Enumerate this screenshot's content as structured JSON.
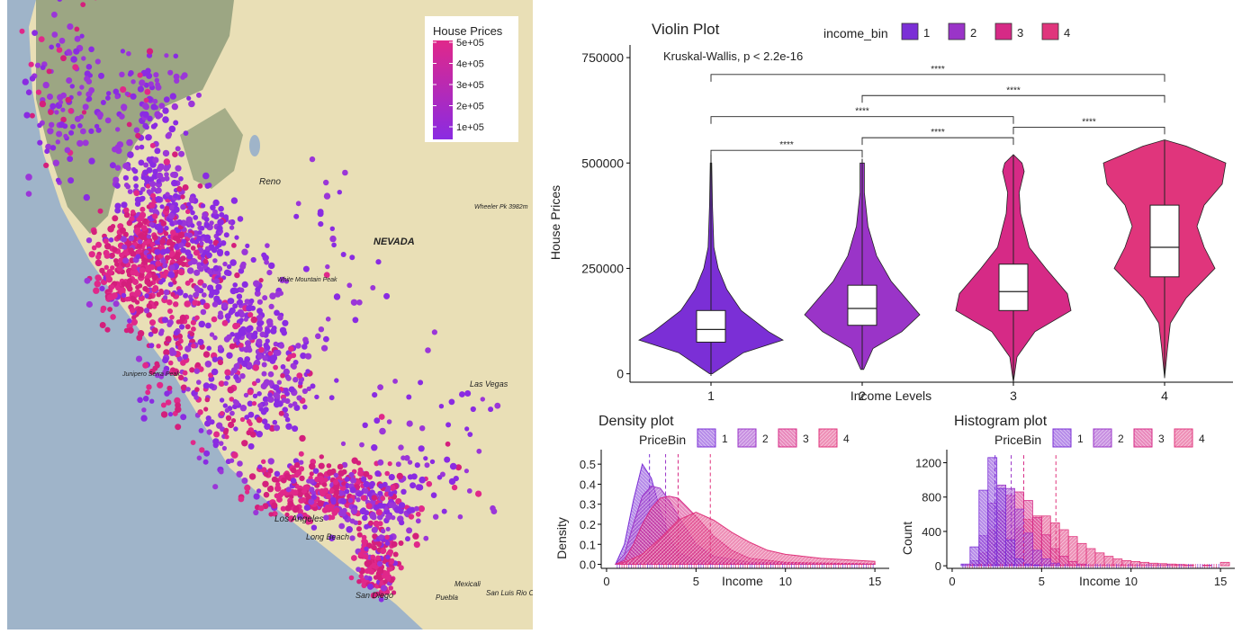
{
  "map": {
    "legend_title": "House Prices",
    "legend_ticks": [
      "5e+05",
      "4e+05",
      "3e+05",
      "2e+05",
      "1e+05"
    ],
    "legend_tick_values": [
      500000,
      400000,
      300000,
      200000,
      100000
    ],
    "gradient_colors": [
      "#e0288a",
      "#8a2be2"
    ],
    "labels": [
      "Reno",
      "NEVADA",
      "Las Vegas",
      "Los Angeles",
      "Long Beach",
      "San Diego",
      "Mexicali",
      "San Luis Rio Colorado",
      "Puebla",
      "Wheeler Pk 3982m",
      "White Mountain Peak",
      "Junipero Serra Peak"
    ]
  },
  "colors": {
    "bin1": "#7b2fd6",
    "bin2": "#9a34c8",
    "bin3": "#d62a86",
    "bin4": "#e0357c",
    "map_water": "#9fb4c9",
    "map_land": "#e9dfb6",
    "map_forest": "#93a07d"
  },
  "chart_data": [
    {
      "type": "violin",
      "title": "Violin Plot",
      "xlabel": "Income Levels",
      "ylabel": "House Prices",
      "legend_title": "income_bin",
      "legend_position": "top",
      "categories": [
        "1",
        "2",
        "3",
        "4"
      ],
      "yticks": [
        0,
        250000,
        500000,
        750000
      ],
      "ytick_labels": [
        "0",
        "250000",
        "500000",
        "750000"
      ],
      "ylim": [
        -20000,
        780000
      ],
      "annotation": "Kruskal-Wallis, p < 2.2e-16",
      "series": [
        {
          "name": "1",
          "min": -5000,
          "q1": 75000,
          "median": 105000,
          "q3": 150000,
          "max": 520000,
          "density": [
            [
              0,
              0.02
            ],
            [
              50000,
              0.45
            ],
            [
              80000,
              1.0
            ],
            [
              100000,
              0.8
            ],
            [
              150000,
              0.42
            ],
            [
              200000,
              0.22
            ],
            [
              250000,
              0.1
            ],
            [
              300000,
              0.04
            ],
            [
              400000,
              0.02
            ],
            [
              500000,
              0.01
            ]
          ]
        },
        {
          "name": "2",
          "min": 10000,
          "q1": 115000,
          "median": 155000,
          "q3": 210000,
          "max": 510000,
          "density": [
            [
              10000,
              0.02
            ],
            [
              60000,
              0.15
            ],
            [
              100000,
              0.55
            ],
            [
              140000,
              0.8
            ],
            [
              170000,
              0.65
            ],
            [
              220000,
              0.4
            ],
            [
              280000,
              0.2
            ],
            [
              350000,
              0.08
            ],
            [
              430000,
              0.03
            ],
            [
              500000,
              0.03
            ]
          ]
        },
        {
          "name": "3",
          "min": -20000,
          "q1": 150000,
          "median": 195000,
          "q3": 260000,
          "max": 520000,
          "density": [
            [
              -20000,
              0.0
            ],
            [
              40000,
              0.05
            ],
            [
              100000,
              0.3
            ],
            [
              150000,
              0.8
            ],
            [
              190000,
              0.75
            ],
            [
              250000,
              0.45
            ],
            [
              300000,
              0.22
            ],
            [
              380000,
              0.1
            ],
            [
              430000,
              0.08
            ],
            [
              480000,
              0.15
            ],
            [
              500000,
              0.12
            ],
            [
              520000,
              0.0
            ]
          ]
        },
        {
          "name": "4",
          "min": -10000,
          "q1": 230000,
          "median": 300000,
          "q3": 400000,
          "max": 555000,
          "density": [
            [
              -10000,
              0.0
            ],
            [
              60000,
              0.04
            ],
            [
              120000,
              0.08
            ],
            [
              180000,
              0.3
            ],
            [
              250000,
              0.7
            ],
            [
              300000,
              0.55
            ],
            [
              350000,
              0.45
            ],
            [
              400000,
              0.55
            ],
            [
              450000,
              0.8
            ],
            [
              500000,
              0.85
            ],
            [
              540000,
              0.3
            ],
            [
              555000,
              0.0
            ]
          ]
        }
      ],
      "comparisons": [
        {
          "groups": [
            "1",
            "4"
          ],
          "label": "****",
          "y": 710000
        },
        {
          "groups": [
            "2",
            "4"
          ],
          "label": "****",
          "y": 660000
        },
        {
          "groups": [
            "1",
            "3"
          ],
          "label": "****",
          "y": 610000
        },
        {
          "groups": [
            "2",
            "3"
          ],
          "label": "****",
          "y": 560000
        },
        {
          "groups": [
            "3",
            "4"
          ],
          "label": "****",
          "y": 585000
        },
        {
          "groups": [
            "1",
            "2"
          ],
          "label": "****",
          "y": 530000
        }
      ]
    },
    {
      "type": "area",
      "title": "Density plot",
      "xlabel": "Income",
      "ylabel": "Density",
      "legend_title": "PriceBin",
      "categories": [
        "1",
        "2",
        "3",
        "4"
      ],
      "xlim": [
        -0.3,
        15.8
      ],
      "ylim": [
        -0.02,
        0.55
      ],
      "xticks": [
        0,
        5,
        10,
        15
      ],
      "yticks": [
        0.0,
        0.1,
        0.2,
        0.3,
        0.4,
        0.5
      ],
      "ytick_labels": [
        "0.0",
        "0.1",
        "0.2",
        "0.3",
        "0.4",
        "0.5"
      ],
      "series": [
        {
          "name": "1",
          "mean": 2.4,
          "points": [
            [
              0.5,
              0
            ],
            [
              1.0,
              0.1
            ],
            [
              1.5,
              0.32
            ],
            [
              2.0,
              0.5
            ],
            [
              2.5,
              0.43
            ],
            [
              3.0,
              0.27
            ],
            [
              3.5,
              0.14
            ],
            [
              4.0,
              0.06
            ],
            [
              5.0,
              0.02
            ],
            [
              7.0,
              0.005
            ],
            [
              15.0,
              0.002
            ]
          ]
        },
        {
          "name": "2",
          "mean": 3.3,
          "points": [
            [
              0.5,
              0
            ],
            [
              1.0,
              0.05
            ],
            [
              1.5,
              0.2
            ],
            [
              2.0,
              0.34
            ],
            [
              2.5,
              0.39
            ],
            [
              3.0,
              0.38
            ],
            [
              3.5,
              0.32
            ],
            [
              4.0,
              0.24
            ],
            [
              5.0,
              0.1
            ],
            [
              6.0,
              0.04
            ],
            [
              8.0,
              0.01
            ],
            [
              15.0,
              0.002
            ]
          ]
        },
        {
          "name": "3",
          "mean": 4.0,
          "points": [
            [
              0.5,
              0
            ],
            [
              1.0,
              0.02
            ],
            [
              1.5,
              0.1
            ],
            [
              2.0,
              0.2
            ],
            [
              2.5,
              0.28
            ],
            [
              3.0,
              0.33
            ],
            [
              3.5,
              0.34
            ],
            [
              4.0,
              0.33
            ],
            [
              5.0,
              0.24
            ],
            [
              6.0,
              0.14
            ],
            [
              7.0,
              0.07
            ],
            [
              8.0,
              0.03
            ],
            [
              10.0,
              0.01
            ],
            [
              15.0,
              0.002
            ]
          ]
        },
        {
          "name": "4",
          "mean": 5.8,
          "points": [
            [
              0.5,
              0
            ],
            [
              1.0,
              0.01
            ],
            [
              2.0,
              0.05
            ],
            [
              3.0,
              0.13
            ],
            [
              4.0,
              0.22
            ],
            [
              5.0,
              0.26
            ],
            [
              6.0,
              0.22
            ],
            [
              7.0,
              0.16
            ],
            [
              8.0,
              0.11
            ],
            [
              9.0,
              0.07
            ],
            [
              10.0,
              0.05
            ],
            [
              11.0,
              0.04
            ],
            [
              12.0,
              0.03
            ],
            [
              13.0,
              0.025
            ],
            [
              14.0,
              0.02
            ],
            [
              15.0,
              0.015
            ]
          ]
        }
      ]
    },
    {
      "type": "histogram",
      "title": "Histogram plot",
      "xlabel": "Income",
      "ylabel": "Count",
      "legend_title": "PriceBin",
      "categories": [
        "1",
        "2",
        "3",
        "4"
      ],
      "xlim": [
        -0.3,
        15.8
      ],
      "ylim": [
        -30,
        1300
      ],
      "xticks": [
        0,
        5,
        10,
        15
      ],
      "yticks": [
        0,
        400,
        800,
        1200
      ],
      "ytick_labels": [
        "0",
        "400",
        "800",
        "1200"
      ],
      "bin_width": 0.5,
      "series": [
        {
          "name": "1",
          "mean": 2.4,
          "bins": [
            [
              0.5,
              20
            ],
            [
              1.0,
              220
            ],
            [
              1.5,
              880
            ],
            [
              2.0,
              1260
            ],
            [
              2.5,
              900
            ],
            [
              3.0,
              300
            ],
            [
              3.5,
              80
            ],
            [
              4.0,
              20
            ],
            [
              4.5,
              8
            ]
          ]
        },
        {
          "name": "2",
          "mean": 3.3,
          "bins": [
            [
              1.0,
              60
            ],
            [
              1.5,
              350
            ],
            [
              2.0,
              730
            ],
            [
              2.5,
              940
            ],
            [
              3.0,
              900
            ],
            [
              3.5,
              660
            ],
            [
              4.0,
              380
            ],
            [
              4.5,
              180
            ],
            [
              5.0,
              80
            ],
            [
              5.5,
              30
            ]
          ]
        },
        {
          "name": "3",
          "mean": 4.0,
          "bins": [
            [
              1.0,
              20
            ],
            [
              1.5,
              150
            ],
            [
              2.0,
              420
            ],
            [
              2.5,
              640
            ],
            [
              3.0,
              820
            ],
            [
              3.5,
              860
            ],
            [
              4.0,
              760
            ],
            [
              4.5,
              560
            ],
            [
              5.0,
              360
            ],
            [
              5.5,
              200
            ],
            [
              6.0,
              110
            ],
            [
              6.5,
              50
            ],
            [
              7.0,
              20
            ]
          ]
        },
        {
          "name": "4",
          "mean": 5.8,
          "bins": [
            [
              1.5,
              20
            ],
            [
              2.0,
              80
            ],
            [
              2.5,
              180
            ],
            [
              3.0,
              320
            ],
            [
              3.5,
              440
            ],
            [
              4.0,
              540
            ],
            [
              4.5,
              580
            ],
            [
              5.0,
              580
            ],
            [
              5.5,
              500
            ],
            [
              6.0,
              420
            ],
            [
              6.5,
              340
            ],
            [
              7.0,
              260
            ],
            [
              7.5,
              200
            ],
            [
              8.0,
              150
            ],
            [
              8.5,
              110
            ],
            [
              9.0,
              80
            ],
            [
              9.5,
              60
            ],
            [
              10.0,
              50
            ],
            [
              10.5,
              40
            ],
            [
              11.0,
              30
            ],
            [
              11.5,
              25
            ],
            [
              12.0,
              20
            ],
            [
              12.5,
              15
            ],
            [
              13.0,
              10
            ],
            [
              14.0,
              8
            ],
            [
              15.0,
              40
            ]
          ]
        }
      ]
    }
  ]
}
